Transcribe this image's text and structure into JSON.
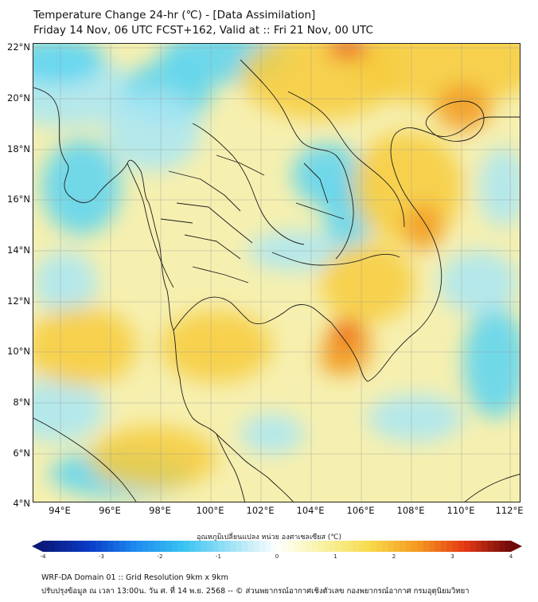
{
  "title": {
    "line1": "Temperature Change 24-hr (℃) - [Data Assimilation]",
    "line2": "Friday 14 Nov, 06 UTC FCST+162, Valid at :: Fri 21 Nov, 00 UTC"
  },
  "map": {
    "lat_labels": [
      "22°N",
      "20°N",
      "18°N",
      "16°N",
      "14°N",
      "12°N",
      "10°N",
      "8°N",
      "6°N",
      "4°N"
    ],
    "lon_labels": [
      "94°E",
      "96°E",
      "98°E",
      "100°E",
      "102°E",
      "104°E",
      "106°E",
      "108°E",
      "110°E",
      "112°E"
    ],
    "colors": {
      "ocean_base": "#f6f0b0",
      "cold": "#59d3f2",
      "cool": "#a9e6f4",
      "warm": "#f7cb3c",
      "hot": "#f29a22",
      "very_hot": "#e8391c",
      "border": "#1c1c1c",
      "grid": "#9a9a9a"
    }
  },
  "colorbar": {
    "label": "อุณหภูมิเปลี่ยนแปลง หน่วย องศาเซลเซียส (℃)",
    "ticks": [
      "-4",
      "-3",
      "-2",
      "-1",
      "0",
      "1",
      "2",
      "3",
      "4"
    ],
    "range": [
      -4,
      4
    ],
    "stops": [
      {
        "v": -4.0,
        "c": "#0a1a7a"
      },
      {
        "v": -3.2,
        "c": "#0a3cc8"
      },
      {
        "v": -2.4,
        "c": "#1f8cf0"
      },
      {
        "v": -1.6,
        "c": "#38c3f2"
      },
      {
        "v": -0.8,
        "c": "#9ee2f6"
      },
      {
        "v": 0.0,
        "c": "#ffffff"
      },
      {
        "v": 0.8,
        "c": "#f8f2a0"
      },
      {
        "v": 1.6,
        "c": "#f8d94a"
      },
      {
        "v": 2.4,
        "c": "#f49a22"
      },
      {
        "v": 3.2,
        "c": "#e63a14"
      },
      {
        "v": 4.0,
        "c": "#6e0a0a"
      }
    ]
  },
  "footer": {
    "line1": "WRF-DA Domain 01 :: Grid Resolution 9km x 9km",
    "line2": "ปรับปรุงข้อมูล ณ เวลา 13:00น. วัน ศ. ที่ 14 พ.ย. 2568 -- © ส่วนพยากรณ์อากาศเชิงตัวเลข กองพยากรณ์อากาศ กรมอุตุนิยมวิทยา"
  }
}
